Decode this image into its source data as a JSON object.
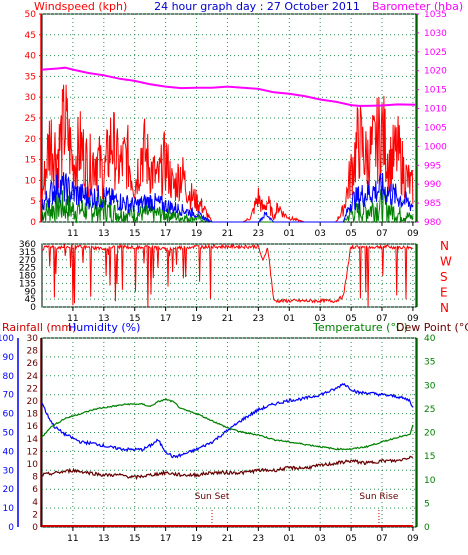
{
  "top": {
    "title": "24 hour graph day : 27 October 2011",
    "left_label": "Windspeed (kph)",
    "right_label": "Barometer (hba)"
  },
  "mid": {
    "dir_labels": [
      "N",
      "W",
      "S",
      "E",
      "N"
    ]
  },
  "bottom": {
    "left_label_1": "Rainfall (mm)",
    "left_label_2": "Humidity (%)",
    "right_label_1": "Temperature (°C)",
    "right_label_2": "Dew Point (°C)",
    "annotations": [
      {
        "text": "Sun Set",
        "hour": 20.0
      },
      {
        "text": "Sun Rise",
        "hour": 30.8
      }
    ]
  },
  "colors": {
    "wind_left": "#ff0000",
    "baro_right": "#ff00ff",
    "title": "#0000cc",
    "axis_blue": "#0000ff",
    "axis_green": "#008000",
    "dir_red": "#ff0000",
    "rain_red": "#cc0000"
  },
  "chart_data": [
    {
      "type": "line",
      "x_ticks": [
        "11",
        "13",
        "15",
        "17",
        "19",
        "21",
        "23",
        "01",
        "03",
        "05",
        "07",
        "09"
      ],
      "xlim_hours": [
        9,
        33.2
      ],
      "left_axis": {
        "label": "Windspeed (kph)",
        "ticks": [
          0,
          5,
          10,
          15,
          20,
          25,
          30,
          35,
          40,
          45,
          50
        ],
        "ylim": [
          0,
          50
        ]
      },
      "right_axis": {
        "label": "Barometer (hba)",
        "ticks": [
          980,
          985,
          990,
          995,
          1000,
          1005,
          1010,
          1015,
          1020,
          1025,
          1030,
          1035
        ],
        "ylim": [
          980,
          1035
        ]
      },
      "series": [
        {
          "name": "Barometer (hba)",
          "axis": "right",
          "color": "#ff00ff",
          "x": [
            9.0,
            10.0,
            10.5,
            11.0,
            12.0,
            13.0,
            14.0,
            15.0,
            16.0,
            17.0,
            18.0,
            19.0,
            20.0,
            21.0,
            22.0,
            23.0,
            24.0,
            25.0,
            26.0,
            27.0,
            28.0,
            29.0,
            29.5,
            30.0,
            31.0,
            32.0,
            33.2
          ],
          "y": [
            1020.3,
            1020.6,
            1020.8,
            1020.3,
            1019.4,
            1018.8,
            1017.9,
            1017.3,
            1016.4,
            1015.8,
            1015.4,
            1015.5,
            1015.5,
            1015.8,
            1015.5,
            1015.2,
            1014.3,
            1013.9,
            1013.3,
            1012.4,
            1011.8,
            1010.9,
            1010.7,
            1010.7,
            1010.8,
            1011.1,
            1011.0
          ]
        },
        {
          "name": "Wind gust",
          "axis": "left",
          "color": "#ff0000",
          "x": [
            9.0,
            9.5,
            10.0,
            10.5,
            11.0,
            11.5,
            12.0,
            12.5,
            13.0,
            13.5,
            14.0,
            14.5,
            15.0,
            15.5,
            16.0,
            16.5,
            17.0,
            17.5,
            18.0,
            18.5,
            19.0,
            19.3,
            19.5,
            20.0,
            21.0,
            22.0,
            22.5,
            23.0,
            23.3,
            23.6,
            24.0,
            24.3,
            24.6,
            25.0,
            26.0,
            27.0,
            28.0,
            28.5,
            29.0,
            29.5,
            30.0,
            30.5,
            31.0,
            31.5,
            32.0,
            32.5,
            33.0
          ],
          "y": [
            6,
            20,
            16,
            24,
            14,
            18,
            13,
            16,
            11,
            20,
            13,
            16,
            9,
            18,
            13,
            10,
            15,
            8,
            12,
            7,
            5,
            4,
            3,
            0,
            0,
            0,
            1,
            6,
            3,
            5,
            1,
            4,
            2,
            1,
            0,
            0,
            0,
            3,
            12,
            20,
            15,
            18,
            22,
            14,
            17,
            11,
            8
          ]
        },
        {
          "name": "Wind average",
          "axis": "left",
          "color": "#0000ff",
          "x": [
            9.0,
            10.0,
            11.0,
            12.0,
            13.0,
            14.0,
            15.0,
            16.0,
            17.0,
            18.0,
            19.0,
            19.5,
            20.0,
            23.0,
            23.5,
            24.0,
            28.5,
            29.0,
            30.0,
            31.0,
            32.0,
            33.0
          ],
          "y": [
            4,
            9,
            7,
            6,
            6,
            5,
            4,
            5,
            4,
            3,
            2,
            1,
            0,
            0,
            2,
            0,
            0,
            5,
            7,
            8,
            6,
            4
          ]
        },
        {
          "name": "Wind",
          "axis": "left",
          "color": "#008000",
          "x": [
            9.0,
            10.0,
            11.0,
            12.0,
            13.0,
            14.0,
            15.0,
            16.0,
            17.0,
            18.0,
            19.0,
            20.0,
            28.5,
            29.0,
            30.0,
            31.0,
            32.0,
            33.0
          ],
          "y": [
            2,
            4,
            3,
            3,
            3,
            2,
            2,
            2,
            2,
            1,
            1,
            0,
            0,
            2,
            3,
            4,
            2,
            1
          ]
        }
      ]
    },
    {
      "type": "line",
      "x_ticks": [
        "11",
        "13",
        "15",
        "17",
        "19",
        "21",
        "23",
        "01",
        "03",
        "05",
        "07",
        "09"
      ],
      "xlim_hours": [
        9,
        33.2
      ],
      "left_axis": {
        "ticks": [
          0,
          45,
          90,
          135,
          180,
          225,
          270,
          315,
          360
        ],
        "ylim": [
          0,
          360
        ]
      },
      "right_axis_labels": [
        "N",
        "W",
        "S",
        "E",
        "N"
      ],
      "series": [
        {
          "name": "Wind direction",
          "color": "#ff0000",
          "x": [
            9.0,
            9.5,
            10.0,
            11.0,
            12.0,
            13.0,
            14.0,
            15.0,
            16.0,
            17.0,
            18.0,
            19.0,
            19.5,
            20.0,
            21.0,
            22.0,
            23.0,
            23.3,
            23.6,
            24.0,
            25.0,
            26.0,
            27.0,
            28.0,
            28.5,
            29.0,
            30.0,
            31.0,
            32.0,
            33.0
          ],
          "y": [
            330,
            350,
            340,
            345,
            340,
            335,
            345,
            340,
            345,
            330,
            340,
            345,
            345,
            345,
            345,
            345,
            345,
            260,
            345,
            35,
            35,
            35,
            35,
            35,
            60,
            345,
            340,
            345,
            340,
            340
          ]
        }
      ]
    },
    {
      "type": "line",
      "x_ticks": [
        "11",
        "13",
        "15",
        "17",
        "19",
        "21",
        "23",
        "01",
        "03",
        "05",
        "07",
        "09"
      ],
      "xlim_hours": [
        9,
        33.2
      ],
      "left_axis_outer": {
        "label": "Humidity (%)",
        "ticks": [
          0,
          10,
          20,
          30,
          40,
          50,
          60,
          70,
          80,
          90,
          100
        ],
        "ylim": [
          0,
          100
        ]
      },
      "left_axis_inner": {
        "label": "Rainfall (mm)",
        "ticks": [
          0,
          2,
          4,
          6,
          8,
          10,
          12,
          14,
          16,
          18,
          20,
          22,
          24,
          26,
          28,
          30
        ],
        "ylim": [
          0,
          30
        ]
      },
      "right_axis": {
        "label": "Temperature (°C)",
        "ticks": [
          0,
          5,
          10,
          15,
          20,
          25,
          30,
          35,
          40
        ],
        "ylim": [
          0,
          40
        ]
      },
      "series": [
        {
          "name": "Humidity (%)",
          "axis": "left_outer",
          "color": "#0000ff",
          "x": [
            9.0,
            9.3,
            9.8,
            10.5,
            11.5,
            12.5,
            13.5,
            14.5,
            15.5,
            16.0,
            16.5,
            17.0,
            17.5,
            18.0,
            19.0,
            20.0,
            21.0,
            22.0,
            23.0,
            24.0,
            25.0,
            26.0,
            27.0,
            28.0,
            28.5,
            29.0,
            29.5,
            30.0,
            31.0,
            32.0,
            32.8,
            33.0
          ],
          "y": [
            66,
            60,
            53,
            49,
            45,
            44,
            42,
            41,
            41,
            43,
            46,
            40,
            37,
            38,
            41,
            45,
            51,
            57,
            62,
            65,
            67,
            68,
            70,
            73,
            76,
            73,
            71,
            71,
            70,
            69,
            67,
            63
          ]
        },
        {
          "name": "Temperature (°C)",
          "axis": "right",
          "color": "#008000",
          "x": [
            9.0,
            9.5,
            10.5,
            11.5,
            12.5,
            13.5,
            14.5,
            15.5,
            16.0,
            16.5,
            17.0,
            17.5,
            18.0,
            19.0,
            20.0,
            21.0,
            22.0,
            23.0,
            24.0,
            25.0,
            26.0,
            27.0,
            28.0,
            29.0,
            30.0,
            31.0,
            32.0,
            32.8,
            33.0
          ],
          "y": [
            19,
            21,
            23,
            24,
            25,
            25.5,
            26,
            26,
            25.5,
            26.5,
            27,
            26.5,
            25,
            24,
            22.5,
            21,
            20,
            19.5,
            18.5,
            18,
            17.5,
            17,
            16.5,
            16.5,
            17,
            18,
            19,
            19.5,
            21.5
          ]
        },
        {
          "name": "Dew Point (°C)",
          "axis": "right",
          "color": "#660000",
          "x": [
            9.0,
            10.0,
            11.0,
            12.0,
            13.0,
            14.0,
            15.0,
            16.0,
            17.0,
            18.0,
            19.0,
            20.0,
            21.0,
            22.0,
            23.0,
            24.0,
            25.0,
            26.0,
            27.0,
            28.0,
            29.0,
            30.0,
            31.0,
            32.0,
            33.0
          ],
          "y": [
            11,
            11.5,
            12,
            11.5,
            11,
            11,
            10.5,
            11,
            11.5,
            11,
            11,
            11.5,
            11.5,
            11.5,
            12,
            12,
            12.5,
            12.5,
            13,
            13.5,
            14,
            13.5,
            14,
            14,
            15
          ]
        },
        {
          "name": "Rainfall (mm)",
          "axis": "left_inner",
          "color": "#cc0000",
          "x": [
            9.0,
            33.0
          ],
          "y": [
            0,
            0
          ]
        }
      ]
    }
  ]
}
